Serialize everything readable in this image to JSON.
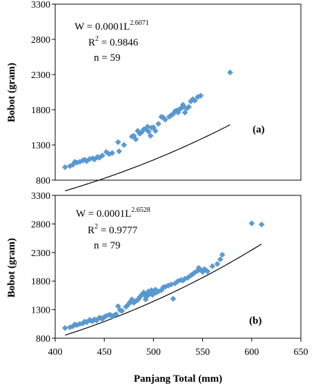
{
  "chart_data": [
    {
      "type": "scatter",
      "panel_label": "(a)",
      "ylabel": "Bobot (gram)",
      "ylim": [
        800,
        3300
      ],
      "yticks": [
        800,
        1300,
        1800,
        2300,
        2800,
        3300
      ],
      "xlim": [
        400,
        650
      ],
      "equation": {
        "prefix": "W = 0.0001L",
        "exponent": "2.6071",
        "r2_prefix": "R",
        "r2_sup": "2",
        "r2_value": " = 0.9846",
        "n": "n = 59"
      },
      "fit": {
        "a": 0.0001,
        "b": 2.6071,
        "x_range": [
          410,
          578
        ]
      },
      "x": [
        410,
        418,
        420,
        422,
        428,
        430,
        432,
        438,
        440,
        443,
        448,
        452,
        458,
        464,
        465,
        478,
        482,
        484,
        486,
        488,
        490,
        492,
        494,
        495,
        497,
        498,
        502,
        508,
        510,
        518,
        520,
        522,
        524,
        526,
        528,
        530,
        532,
        534,
        536,
        538,
        540,
        548,
        578,
        415,
        425,
        435,
        445,
        455,
        470,
        480,
        500,
        505,
        512,
        516,
        525,
        527,
        531,
        542,
        545
      ],
      "y": [
        985,
        1020,
        1060,
        1050,
        1080,
        1090,
        1070,
        1110,
        1095,
        1130,
        1150,
        1200,
        1185,
        1340,
        1210,
        1420,
        1380,
        1500,
        1460,
        1480,
        1520,
        1530,
        1560,
        1490,
        1430,
        1545,
        1500,
        1700,
        1690,
        1720,
        1740,
        1780,
        1790,
        1800,
        1820,
        1870,
        1760,
        1820,
        1840,
        1920,
        1950,
        2000,
        2330,
        1000,
        1060,
        1100,
        1120,
        1170,
        1300,
        1430,
        1550,
        1600,
        1660,
        1700,
        1760,
        1810,
        1840,
        1930,
        1980
      ]
    },
    {
      "type": "scatter",
      "panel_label": "(b)",
      "ylabel": "Bobot (gram)",
      "ylim": [
        800,
        3300
      ],
      "yticks": [
        800,
        1300,
        1800,
        2300,
        2800,
        3300
      ],
      "xlim": [
        400,
        650
      ],
      "xticks": [
        400,
        450,
        500,
        550,
        600,
        650
      ],
      "xlabel": "Panjang Total (mm)",
      "equation": {
        "prefix": "W = 0.0001L",
        "exponent": "2.6528",
        "r2_prefix": "R",
        "r2_sup": "2",
        "r2_value": " = 0.9777",
        "n": "n = 79"
      },
      "fit": {
        "a": 0.0001,
        "b": 2.6528,
        "x_range": [
          410,
          610
        ]
      },
      "x": [
        410,
        415,
        418,
        420,
        422,
        428,
        430,
        432,
        436,
        438,
        440,
        442,
        445,
        448,
        450,
        452,
        455,
        458,
        460,
        462,
        464,
        468,
        472,
        476,
        478,
        480,
        482,
        484,
        486,
        488,
        490,
        491,
        492,
        493,
        494,
        495,
        496,
        497,
        498,
        499,
        500,
        501,
        502,
        505,
        508,
        510,
        512,
        515,
        518,
        520,
        522,
        525,
        528,
        532,
        535,
        538,
        540,
        542,
        545,
        548,
        550,
        552,
        555,
        560,
        565,
        568,
        570,
        600,
        610,
        425,
        435,
        447,
        457,
        466,
        475,
        485,
        503,
        530,
        546
      ],
      "y": [
        980,
        990,
        1010,
        1040,
        1030,
        1060,
        1090,
        1080,
        1110,
        1100,
        1130,
        1110,
        1160,
        1140,
        1170,
        1190,
        1210,
        1180,
        1200,
        1220,
        1360,
        1280,
        1350,
        1430,
        1480,
        1420,
        1450,
        1470,
        1520,
        1560,
        1600,
        1550,
        1480,
        1530,
        1580,
        1620,
        1570,
        1600,
        1640,
        1560,
        1610,
        1590,
        1650,
        1620,
        1640,
        1690,
        1700,
        1720,
        1740,
        1490,
        1760,
        1800,
        1820,
        1840,
        1860,
        1900,
        1920,
        1950,
        1980,
        2000,
        1960,
        2010,
        1970,
        2060,
        2100,
        2180,
        2260,
        2810,
        2790,
        1050,
        1120,
        1150,
        1200,
        1290,
        1400,
        1490,
        1600,
        1810,
        2030
      ]
    }
  ]
}
